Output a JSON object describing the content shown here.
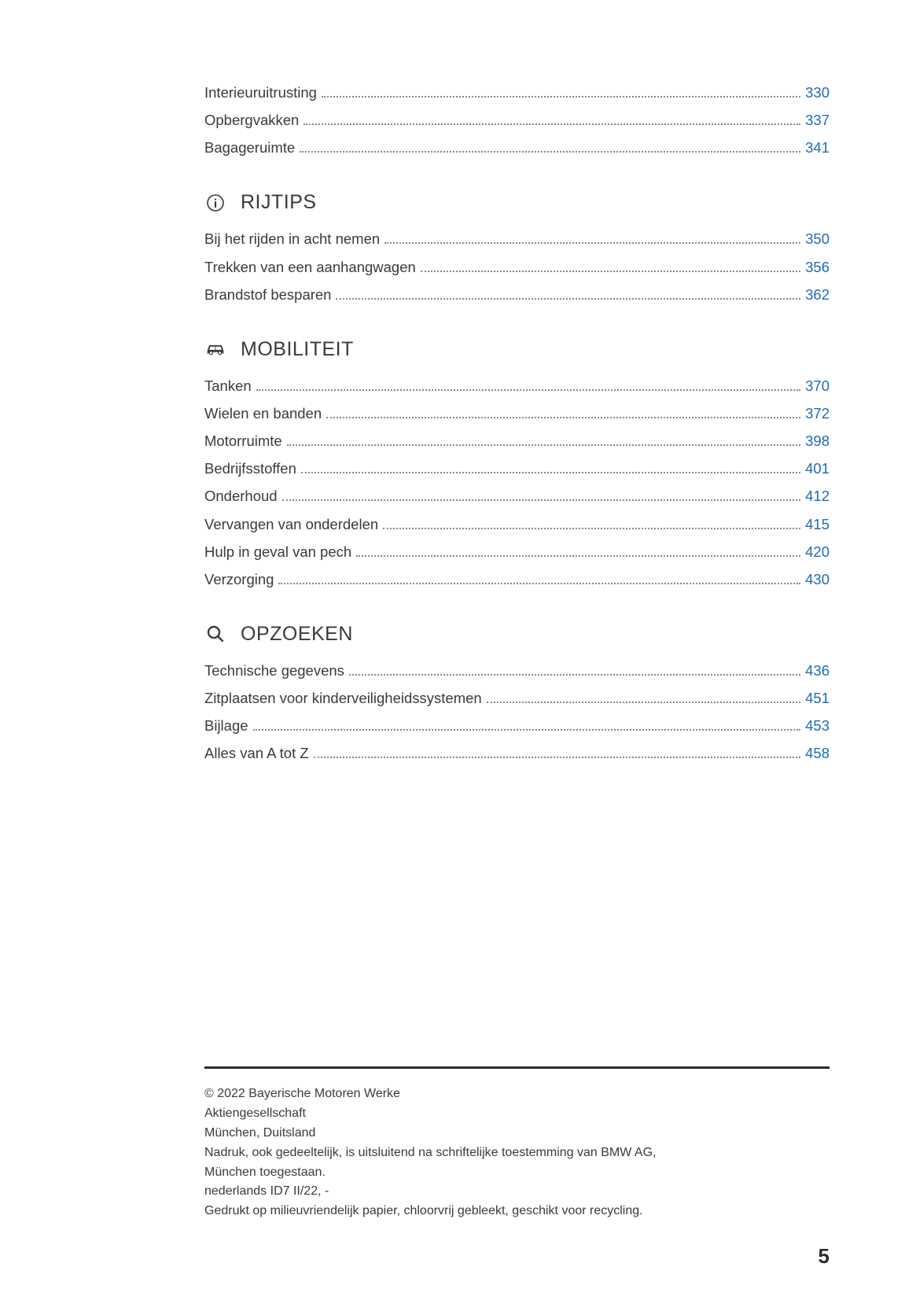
{
  "link_color": "#1e6bb8",
  "text_color": "#3a3a3a",
  "initial_items": [
    {
      "label": "Interieuruitrusting",
      "page": "330"
    },
    {
      "label": "Opbergvakken",
      "page": "337"
    },
    {
      "label": "Bagageruimte",
      "page": "341"
    }
  ],
  "sections": [
    {
      "icon": "info-icon",
      "title": "RIJTIPS",
      "items": [
        {
          "label": "Bij het rijden in acht nemen",
          "page": "350"
        },
        {
          "label": "Trekken van een aanhangwagen",
          "page": "356"
        },
        {
          "label": "Brandstof besparen",
          "page": "362"
        }
      ]
    },
    {
      "icon": "car-icon",
      "title": "MOBILITEIT",
      "items": [
        {
          "label": "Tanken",
          "page": "370"
        },
        {
          "label": "Wielen en banden",
          "page": "372"
        },
        {
          "label": "Motorruimte",
          "page": "398"
        },
        {
          "label": "Bedrijfsstoffen",
          "page": "401"
        },
        {
          "label": "Onderhoud",
          "page": "412"
        },
        {
          "label": "Vervangen van onderdelen",
          "page": "415"
        },
        {
          "label": "Hulp in geval van pech",
          "page": "420"
        },
        {
          "label": "Verzorging",
          "page": "430"
        }
      ]
    },
    {
      "icon": "search-icon",
      "title": "OPZOEKEN",
      "items": [
        {
          "label": "Technische gegevens",
          "page": "436"
        },
        {
          "label": "Zitplaatsen voor kinderveiligheidssystemen",
          "page": "451"
        },
        {
          "label": "Bijlage",
          "page": "453"
        },
        {
          "label": "Alles van A tot Z",
          "page": "458"
        }
      ]
    }
  ],
  "footer": {
    "lines": [
      "© 2022 Bayerische Motoren Werke",
      "Aktiengesellschaft",
      "München, Duitsland",
      "Nadruk, ook gedeeltelijk, is uitsluitend na schriftelijke toestemming van BMW AG,",
      "München toegestaan.",
      "nederlands ID7 II/22, -",
      "Gedrukt op milieuvriendelijk papier, chloorvrij gebleekt, geschikt voor recycling."
    ]
  },
  "page_number": "5"
}
